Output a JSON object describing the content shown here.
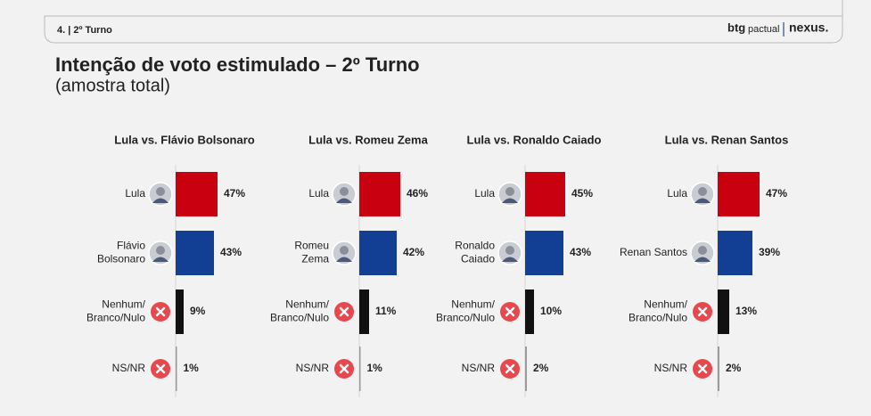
{
  "header": {
    "section": "4. | 2º Turno",
    "brand": "btg",
    "brand_sub": "pactual",
    "partner": "nexus."
  },
  "title": "Intenção de voto estimulado – 2º Turno",
  "subtitle": "(amostra total)",
  "chart_data": [
    {
      "type": "bar",
      "title": "Lula vs. Flávio Bolsonaro",
      "categories": [
        "Lula",
        "Flávio\nBolsonaro",
        "Nenhum/\nBranco/Nulo",
        "NS/NR"
      ],
      "values": [
        47,
        43,
        9,
        1
      ],
      "value_labels": [
        "47%",
        "43%",
        "9%",
        "1%"
      ],
      "colors": [
        "#c8000f",
        "#123f93",
        "#111111",
        "#9a9a9a"
      ]
    },
    {
      "type": "bar",
      "title": "Lula vs. Romeu Zema",
      "categories": [
        "Lula",
        "Romeu\nZema",
        "Nenhum/\nBranco/Nulo",
        "NS/NR"
      ],
      "values": [
        46,
        42,
        11,
        1
      ],
      "value_labels": [
        "46%",
        "42%",
        "11%",
        "1%"
      ],
      "colors": [
        "#c8000f",
        "#123f93",
        "#111111",
        "#9a9a9a"
      ]
    },
    {
      "type": "bar",
      "title": "Lula vs. Ronaldo Caiado",
      "categories": [
        "Lula",
        "Ronaldo\nCaiado",
        "Nenhum/\nBranco/Nulo",
        "NS/NR"
      ],
      "values": [
        45,
        43,
        10,
        2
      ],
      "value_labels": [
        "45%",
        "43%",
        "10%",
        "2%"
      ],
      "colors": [
        "#c8000f",
        "#123f93",
        "#111111",
        "#9a9a9a"
      ]
    },
    {
      "type": "bar",
      "title": "Lula vs. Renan Santos",
      "categories": [
        "Lula",
        "Renan Santos",
        "Nenhum/\nBranco/Nulo",
        "NS/NR"
      ],
      "values": [
        47,
        39,
        13,
        2
      ],
      "value_labels": [
        "47%",
        "39%",
        "13%",
        "2%"
      ],
      "colors": [
        "#c8000f",
        "#123f93",
        "#111111",
        "#9a9a9a"
      ]
    }
  ]
}
